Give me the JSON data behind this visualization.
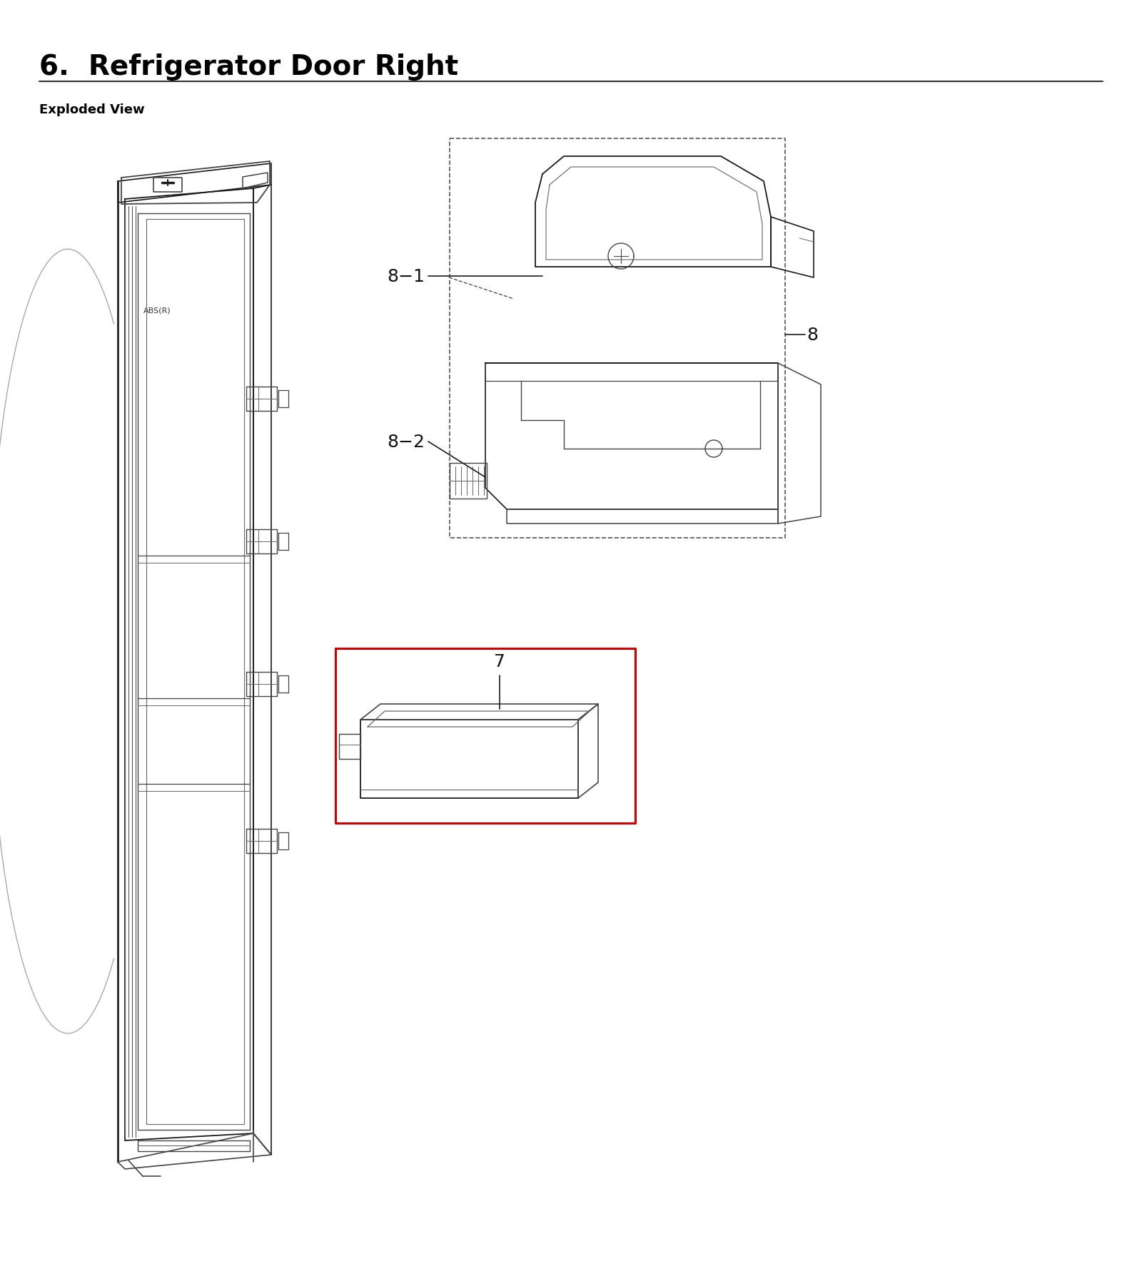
{
  "title": "6.  Refrigerator Door Right",
  "subtitle": "Exploded View",
  "bg_color": "#ffffff",
  "title_fontsize": 28,
  "subtitle_fontsize": 13,
  "fig_width": 16.0,
  "fig_height": 17.9,
  "lc": "#1a1a1a",
  "lc2": "#444444",
  "lc3": "#666666",
  "red_color": "#cc0000",
  "label_fontsize": 18
}
